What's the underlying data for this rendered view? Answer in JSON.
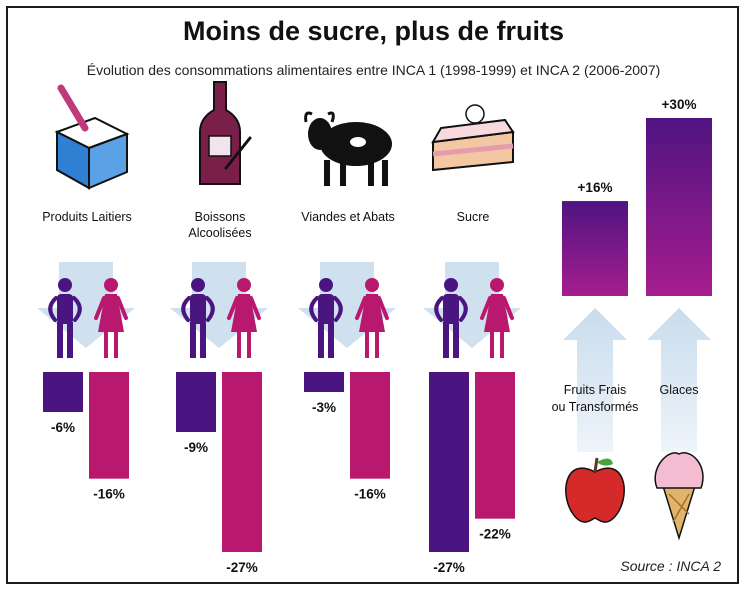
{
  "title": "Moins de sucre, plus de fruits",
  "subtitle": "Évolution des consommations alimentaires entre INCA 1 (1998-1999) et INCA 2 (2006-2007)",
  "source": "Source : INCA 2",
  "colors": {
    "men": "#4a1580",
    "women": "#b8186e",
    "increase_top": "#4f1481",
    "increase_bottom": "#a61d8f",
    "arrow": "#cfe0ee"
  },
  "chart_data": [
    {
      "type": "bar",
      "title": "",
      "categories": [
        "Produits Laitiers",
        "Boissons Alcoolisées",
        "Viandes et Abats",
        "Sucre"
      ],
      "series": [
        {
          "values": [
            -6,
            -9,
            -3,
            -27
          ]
        },
        {
          "values": [
            -16,
            -27,
            -16,
            -22
          ]
        }
      ],
      "value_labels": [
        [
          "-6%",
          "-9%",
          "-3%",
          "-27%"
        ],
        [
          "-16%",
          "-27%",
          "-16%",
          "-22%"
        ]
      ],
      "icons": [
        "milk-carton-icon",
        "wine-bottle-icon",
        "cow-icon",
        "cake-slice-icon"
      ],
      "ylim": [
        -27,
        0
      ]
    },
    {
      "type": "bar",
      "title": "",
      "categories": [
        "Fruits Frais ou Transformés",
        "Glaces"
      ],
      "values": [
        16,
        30
      ],
      "value_labels": [
        "+16%",
        "+30%"
      ],
      "icons": [
        "apple-icon",
        "ice-cream-cone-icon"
      ],
      "ylim": [
        0,
        30
      ]
    }
  ]
}
